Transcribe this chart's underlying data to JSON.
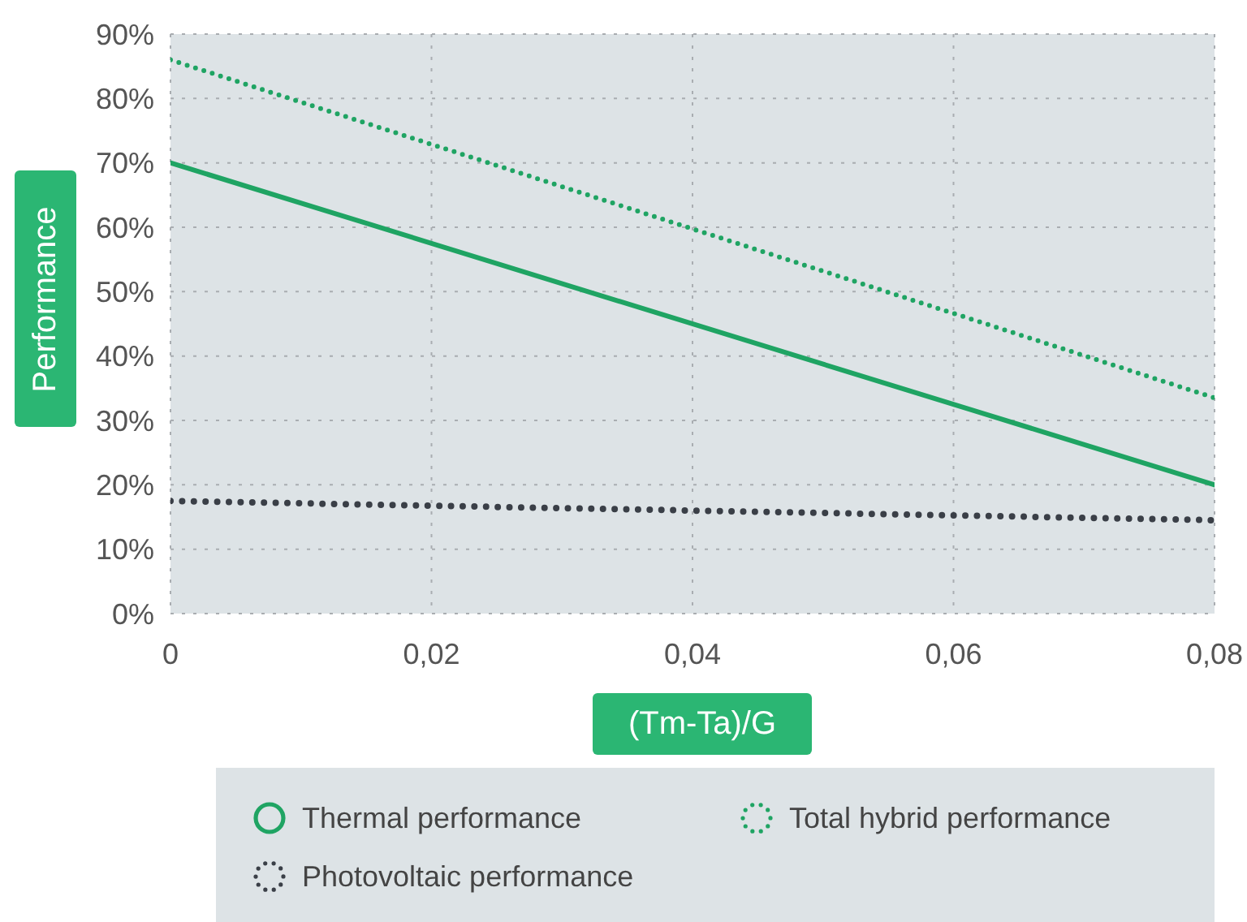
{
  "chart_data": {
    "type": "line",
    "xlabel": "(Tm-Ta)/G",
    "ylabel": "Performance",
    "x": [
      0,
      0.08
    ],
    "series": [
      {
        "name": "Thermal performance",
        "color": "#1fa463",
        "values": [
          70,
          20
        ],
        "line_style": "solid"
      },
      {
        "name": "Total hybrid performance",
        "color": "#1fa463",
        "values": [
          86,
          33.5
        ],
        "line_style": "dotted"
      },
      {
        "name": "Photovoltaic performance",
        "color": "#3a3f47",
        "values": [
          17.5,
          14.5
        ],
        "line_style": "dotted"
      }
    ],
    "xlim": [
      0,
      0.08
    ],
    "xticks": [
      0,
      {
        "value": 0.02,
        "label": "0,02"
      },
      {
        "value": 0.04,
        "label": "0,04"
      },
      {
        "value": 0.06,
        "label": "0,06"
      },
      {
        "value": 0.08,
        "label": "0,08"
      }
    ],
    "ylim": [
      0,
      90
    ],
    "yticks": [
      {
        "value": 0,
        "label": "0%"
      },
      {
        "value": 10,
        "label": "10%"
      },
      {
        "value": 20,
        "label": "20%"
      },
      {
        "value": 30,
        "label": "30%"
      },
      {
        "value": 40,
        "label": "40%"
      },
      {
        "value": 50,
        "label": "50%"
      },
      {
        "value": 60,
        "label": "60%"
      },
      {
        "value": 70,
        "label": "70%"
      },
      {
        "value": 80,
        "label": "80%"
      },
      {
        "value": 90,
        "label": "90%"
      }
    ],
    "grid": true,
    "legend": "bottom",
    "marker": "none"
  }
}
